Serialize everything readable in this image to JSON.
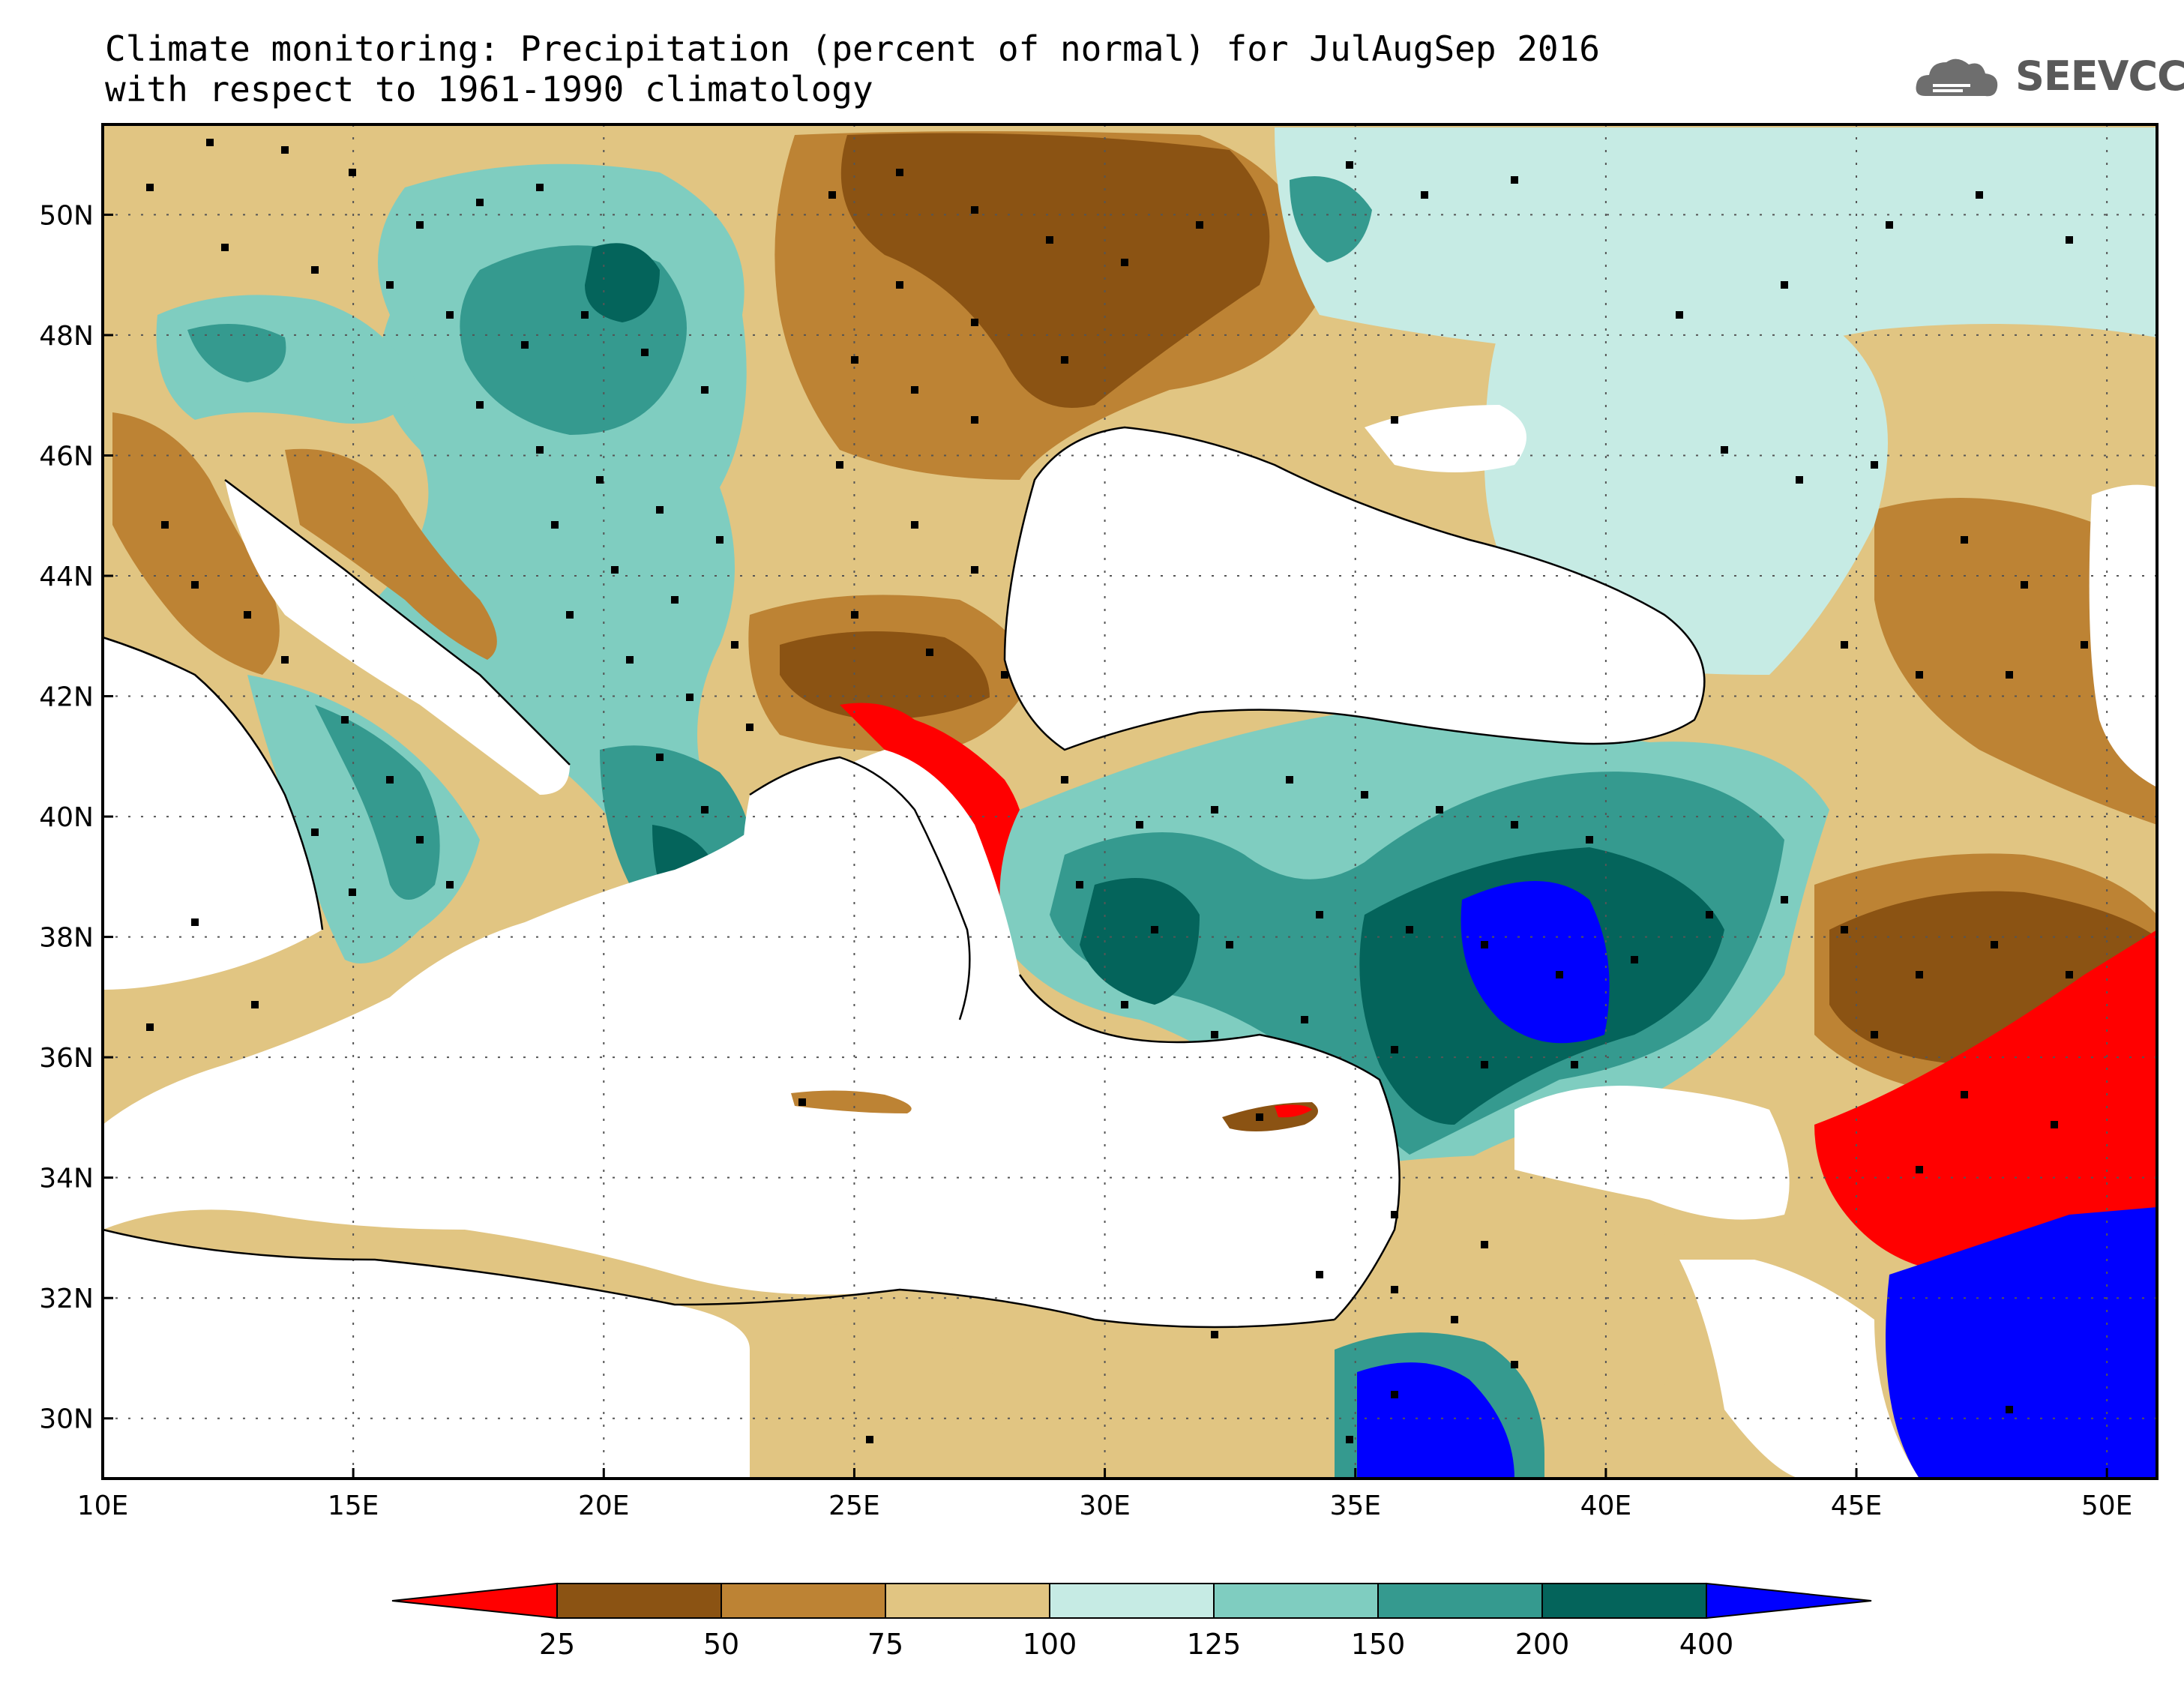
{
  "title": {
    "line1": "Climate monitoring: Precipitation (percent of normal) for JulAugSep 2016",
    "line2": "with respect to 1961-1990 climatology"
  },
  "logo": {
    "text": "SEEVCCC"
  },
  "map": {
    "lon_range": [
      10,
      51
    ],
    "lat_range": [
      29,
      51.5
    ],
    "lon_ticks": [
      10,
      15,
      20,
      25,
      30,
      35,
      40,
      45,
      50
    ],
    "lon_labels": [
      "10E",
      "15E",
      "20E",
      "25E",
      "30E",
      "35E",
      "40E",
      "45E",
      "50E"
    ],
    "lat_ticks": [
      30,
      32,
      34,
      36,
      38,
      40,
      42,
      44,
      46,
      48,
      50
    ],
    "lat_labels": [
      "30N",
      "32N",
      "34N",
      "36N",
      "38N",
      "40N",
      "42N",
      "44N",
      "46N",
      "48N",
      "50N"
    ]
  },
  "colorbar": {
    "labels": [
      "25",
      "50",
      "75",
      "100",
      "125",
      "150",
      "200",
      "400"
    ],
    "colors": [
      "#ff0000",
      "#8b5313",
      "#bd8334",
      "#e1c582",
      "#c6ebe4",
      "#7fcdc0",
      "#359a8f",
      "#04645b",
      "#0000ff"
    ]
  },
  "colors": {
    "water": "#ffffff",
    "border": "#000000",
    "station": "#000000"
  }
}
